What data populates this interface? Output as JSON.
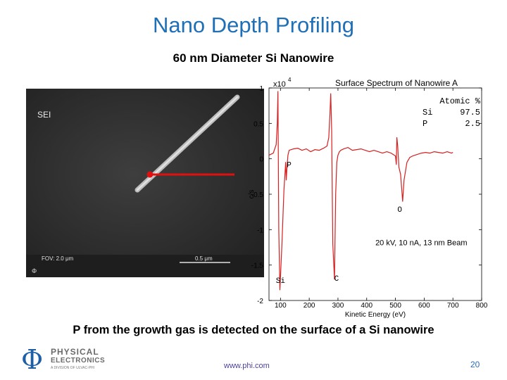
{
  "slide": {
    "title": "Nano Depth Profiling",
    "subtitle": "60 nm Diameter Si Nanowire",
    "conclusion": "P from the growth gas is detected on the surface of a Si nanowire",
    "footer_url": "www.phi.com",
    "page_number": "20",
    "title_color": "#1f6fb6"
  },
  "sem_image": {
    "label": "SEI",
    "fov": "FOV: 2.0 μm",
    "scale_bar": "0.5 μm",
    "phi_mark": "Φ"
  },
  "logo": {
    "symbol": "Φ",
    "line1": "PHYSICAL",
    "line2": "ELECTRONICS",
    "line3": "A DIVISION OF ULVAC-PHI"
  },
  "chart_data": {
    "type": "line",
    "title": "Surface Spectrum of Nanowire A",
    "xlabel": "Kinetic Energy (eV)",
    "ylabel": "c/s",
    "y_exponent": "x10",
    "y_exponent_power": "4",
    "xlim": [
      60,
      800
    ],
    "ylim": [
      -2,
      1
    ],
    "xticks": [
      100,
      200,
      300,
      400,
      500,
      600,
      700,
      800
    ],
    "yticks": [
      {
        "value": 1,
        "label": "1"
      },
      {
        "value": 0.5,
        "label": "0.5"
      },
      {
        "value": 0,
        "label": "0"
      },
      {
        "value": -0.5,
        "label": "-0.5"
      },
      {
        "value": -1,
        "label": "-1"
      },
      {
        "value": -1.5,
        "label": "-1.5"
      },
      {
        "value": -2,
        "label": "-2"
      }
    ],
    "grid": false,
    "line_color": "#d42020",
    "series": [
      {
        "x": [
          60,
          75,
          85,
          89,
          91,
          94,
          98,
          105,
          112,
          118,
          120,
          123,
          126,
          130,
          145,
          160,
          175,
          190,
          205,
          220,
          235,
          250,
          262,
          268,
          272,
          275,
          278,
          282,
          288,
          292,
          296,
          300,
          305,
          310,
          320,
          335,
          350,
          365,
          380,
          395,
          410,
          425,
          440,
          455,
          470,
          485,
          500,
          503,
          505,
          508,
          512,
          518,
          525,
          530,
          540,
          550,
          560,
          575,
          590,
          605,
          620,
          635,
          650,
          665,
          680,
          695,
          700
        ],
        "values": [
          0.05,
          0.08,
          0.2,
          0.5,
          0.95,
          -1.0,
          -1.85,
          -1.2,
          -0.45,
          -0.05,
          -0.3,
          -0.1,
          0.05,
          0.12,
          0.14,
          0.15,
          0.12,
          0.14,
          0.1,
          0.13,
          0.12,
          0.15,
          0.18,
          0.3,
          0.62,
          0.92,
          0.4,
          -1.2,
          -1.7,
          -0.5,
          -0.05,
          0.05,
          0.1,
          0.12,
          0.14,
          0.16,
          0.12,
          0.13,
          0.14,
          0.12,
          0.1,
          0.12,
          0.1,
          0.08,
          0.1,
          0.08,
          0.04,
          -0.08,
          0.3,
          0.18,
          -0.12,
          -0.22,
          -0.6,
          -0.3,
          -0.05,
          0.02,
          0.04,
          0.06,
          0.08,
          0.09,
          0.08,
          0.1,
          0.09,
          0.08,
          0.1,
          0.08,
          0.09
        ]
      }
    ],
    "annotations": [
      {
        "text": "Si",
        "x": 100,
        "y": -1.75
      },
      {
        "text": "C",
        "x": 295,
        "y": -1.72
      },
      {
        "text": "P",
        "x": 130,
        "y": -0.12
      },
      {
        "text": "O",
        "x": 515,
        "y": -0.75
      },
      {
        "text": "20 kV, 10 nA, 13 nm Beam",
        "x": 590,
        "y": -1.22
      }
    ],
    "atomic_table": {
      "header": "Atomic %",
      "rows": [
        {
          "element": "Si",
          "value": "97.5"
        },
        {
          "element": "P",
          "value": "2.5"
        }
      ]
    }
  }
}
